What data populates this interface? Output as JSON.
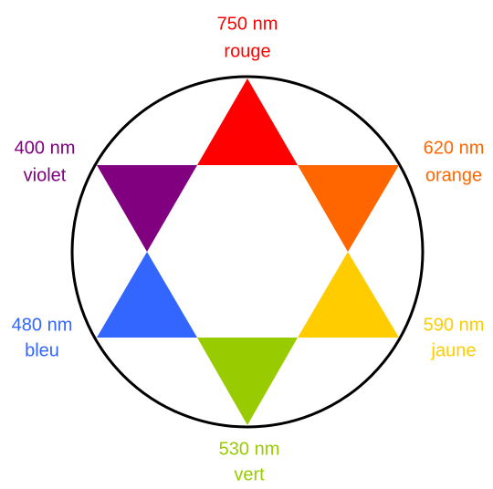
{
  "nodes": [
    {
      "wavelength": "750 nm",
      "name": "rouge",
      "color": "#ff0000"
    },
    {
      "wavelength": "620 nm",
      "name": "orange",
      "color": "#ff6600"
    },
    {
      "wavelength": "590 nm",
      "name": "jaune",
      "color": "#ffcc00"
    },
    {
      "wavelength": "530 nm",
      "name": "vert",
      "color": "#99cc00"
    },
    {
      "wavelength": "480 nm",
      "name": "bleu",
      "color": "#3366ff"
    },
    {
      "wavelength": "400 nm",
      "name": "violet",
      "color": "#800080"
    }
  ]
}
